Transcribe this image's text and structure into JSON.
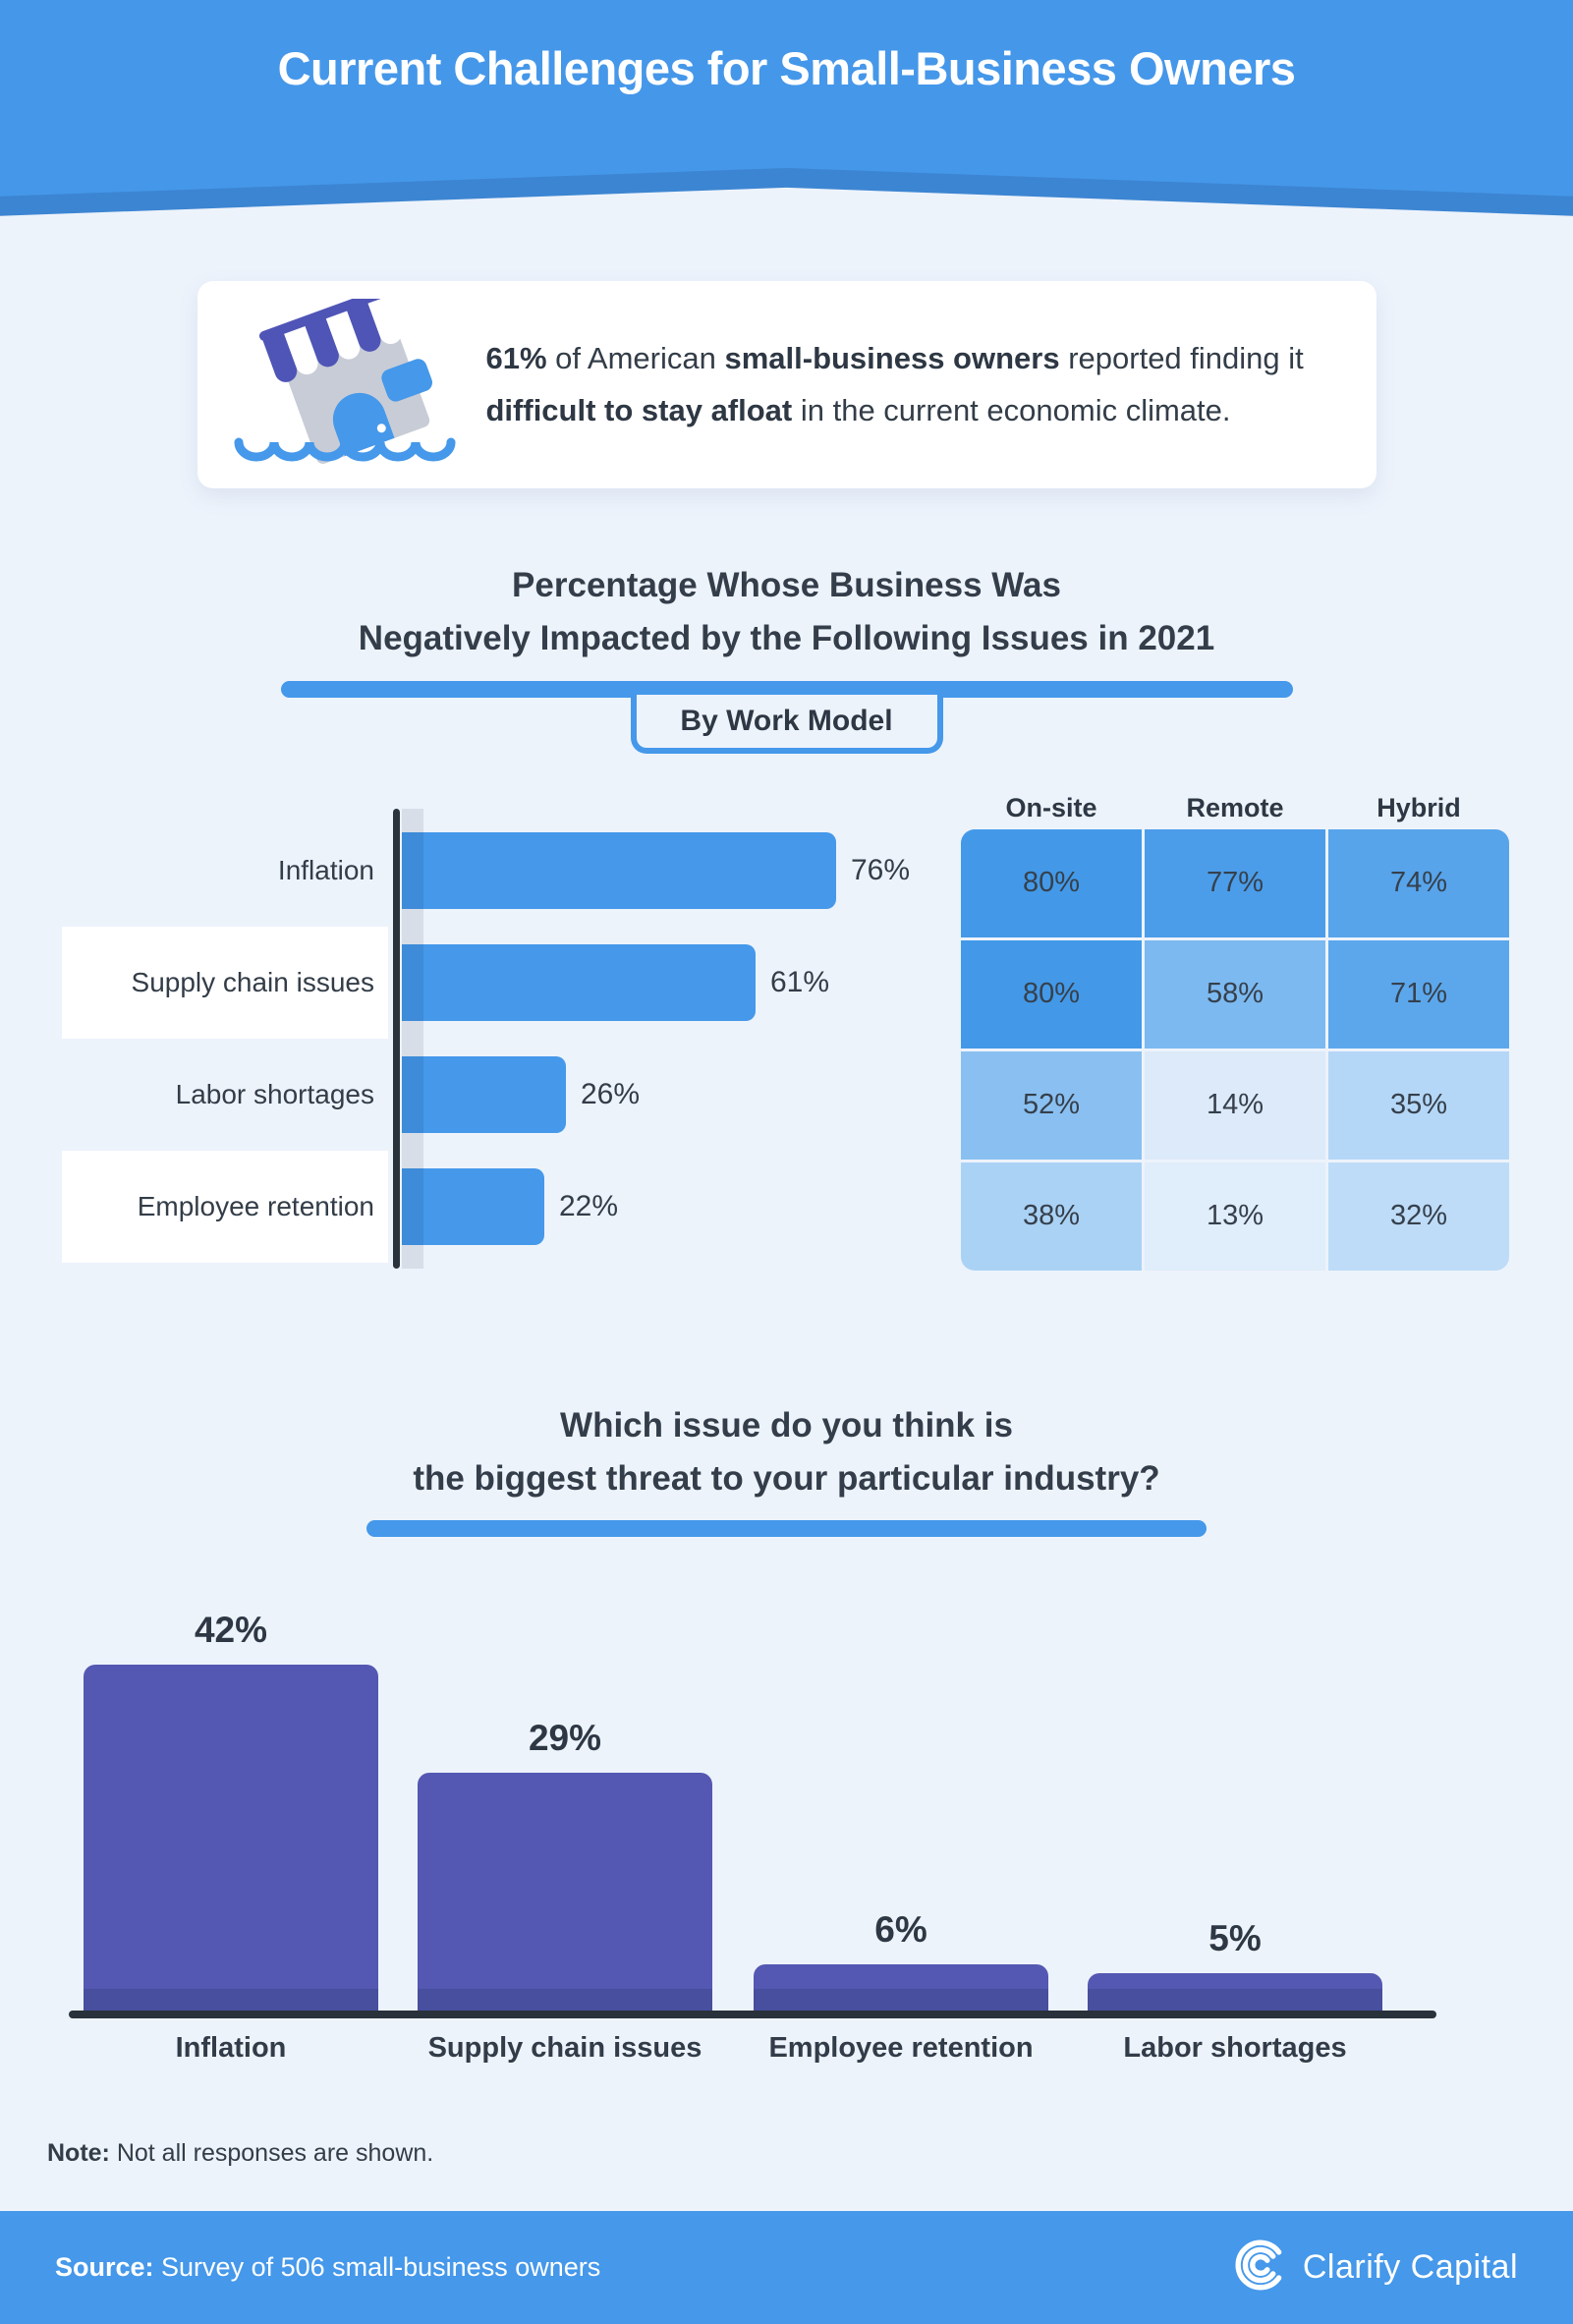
{
  "header": {
    "title": "Current Challenges for Small-Business Owners"
  },
  "callout": {
    "icon": "sinking-storefront-icon",
    "segments": [
      {
        "text": "61%",
        "bold": true
      },
      {
        "text": " of American ",
        "bold": false
      },
      {
        "text": "small-business owners",
        "bold": true
      },
      {
        "text": " reported finding it ",
        "bold": false
      },
      {
        "text": "difficult to stay afloat",
        "bold": true
      },
      {
        "text": " in the current economic climate.",
        "bold": false
      }
    ]
  },
  "section1": {
    "title_line1": "Percentage Whose Business Was",
    "title_line2": "Negatively Impacted by the Following Issues in 2021",
    "badge": "By Work Model"
  },
  "section2": {
    "title_line1": "Which issue do you think is",
    "title_line2": "the biggest threat to your particular industry?"
  },
  "chart_data": [
    {
      "type": "bar",
      "orientation": "horizontal",
      "title": "Percentage Whose Business Was Negatively Impacted by the Following Issues in 2021",
      "subtitle": "By Work Model",
      "categories": [
        "Inflation",
        "Supply chain issues",
        "Labor shortages",
        "Employee retention"
      ],
      "values": [
        76,
        61,
        26,
        22
      ],
      "unit": "%",
      "xlim": [
        0,
        100
      ],
      "bar_color": "#4598ea",
      "bar_shade_color": "#3d8bd9"
    },
    {
      "type": "heatmap",
      "rows": [
        "Inflation",
        "Supply chain issues",
        "Labor shortages",
        "Employee retention"
      ],
      "columns": [
        "On-site",
        "Remote",
        "Hybrid"
      ],
      "values": [
        [
          80,
          77,
          74
        ],
        [
          80,
          58,
          71
        ],
        [
          52,
          14,
          35
        ],
        [
          38,
          13,
          32
        ]
      ],
      "unit": "%",
      "cell_colors": [
        [
          "#4399e8",
          "#4b9de9",
          "#57a4eb"
        ],
        [
          "#4399e8",
          "#7cb9f0",
          "#5ca7ec"
        ],
        [
          "#8ac0f1",
          "#ddeaf9",
          "#b5d7f7"
        ],
        [
          "#aad2f5",
          "#e0edfa",
          "#bedcf8"
        ]
      ]
    },
    {
      "type": "bar",
      "orientation": "vertical",
      "title": "Which issue do you think is the biggest threat to your particular industry?",
      "categories": [
        "Inflation",
        "Supply chain issues",
        "Employee retention",
        "Labor shortages"
      ],
      "values": [
        42,
        29,
        6,
        5
      ],
      "unit": "%",
      "bar_color": "#5458b2",
      "bar_base_color": "#474f9e"
    }
  ],
  "note": {
    "label": "Note:",
    "text": " Not all responses are shown."
  },
  "footer": {
    "source_label": "Source:",
    "source_text": " Survey of 506 small-business owners",
    "brand": "Clarify Capital",
    "brand_icon": "clarify-capital-logo-icon"
  },
  "colors": {
    "page_background": "#edf3fb",
    "header_blue": "#4597e9",
    "header_band_blue": "#3c85d2",
    "accent_blue": "#4598ea",
    "bar_blue": "#4598ea",
    "bar_purple": "#5458b2",
    "axis_dark": "#29313a",
    "text_dark": "#333d48"
  }
}
